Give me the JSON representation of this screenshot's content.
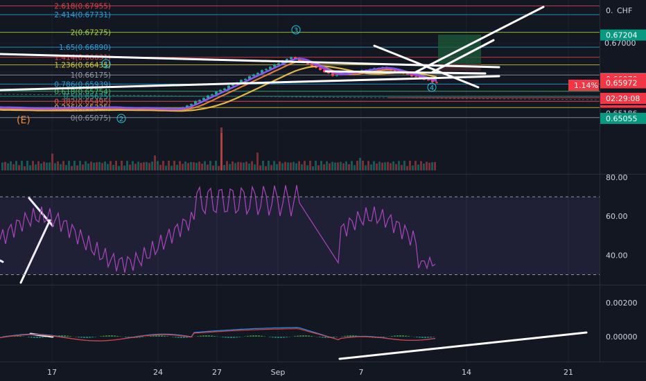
{
  "main": {
    "currency": "CHF",
    "top_label": "0.",
    "axis_ticks": [
      "0.67000"
    ],
    "fib_levels": [
      {
        "label": "2.618(0.67955)",
        "price": 0.67955,
        "color": "#e0414a"
      },
      {
        "label": "2.414(0.67731)",
        "price": 0.67731,
        "color": "#2a9fd6"
      },
      {
        "label": "2(0.67275)",
        "price": 0.67275,
        "color": "#a5d63f"
      },
      {
        "label": "1.65(0.66890)",
        "price": 0.6689,
        "color": "#2a9fd6"
      },
      {
        "label": "1.414(0.66631)",
        "price": 0.66631,
        "color": "#e0414a"
      },
      {
        "label": "1.236(0.66435)",
        "price": 0.66435,
        "color": "#d4c93a"
      },
      {
        "label": "1(0.66175)",
        "price": 0.66175,
        "color": "#9598a1"
      },
      {
        "label": "0.786(0.65939)",
        "price": 0.65939,
        "color": "#2a9fd6"
      },
      {
        "label": "0.618(0.65754)",
        "price": 0.65754,
        "color": "#3fbf6f"
      },
      {
        "label": "0.5(0.65625)",
        "price": 0.65625,
        "color": "#26a69a"
      },
      {
        "label": "0.382(0.65495)",
        "price": 0.65495,
        "color": "#ef5350"
      },
      {
        "label": "0.236(0.65335)",
        "price": 0.65335,
        "color": "#d4c93a"
      },
      {
        "label": "0(0.65075)",
        "price": 0.65075,
        "color": "#9598a1"
      }
    ],
    "price_tags": [
      {
        "text": "0.67204",
        "price": 0.67204,
        "bg": "#089981",
        "fg": "#ffffff"
      },
      {
        "text": "0.66077",
        "price": 0.66077,
        "bg": "#ffffff",
        "fg": "#131722"
      },
      {
        "text": "0.66070",
        "price": 0.6607,
        "bg": "#f23645",
        "fg": "#ffffff"
      },
      {
        "text": "0.65972",
        "price": 0.65972,
        "bg": "#f23645",
        "fg": "#ffffff"
      },
      {
        "text": "0.65252",
        "price": 0.65252,
        "bg": "#f23645",
        "fg": "#ffffff"
      },
      {
        "text": "0.65186",
        "price": 0.65186,
        "bg": "#131722",
        "fg": "#d1d4dc"
      },
      {
        "text": "0.65055",
        "price": 0.65055,
        "bg": "#089981",
        "fg": "#ffffff"
      }
    ],
    "percent_badge": "1.14%",
    "countdown": "02:29:08",
    "wave_labels": [
      "(E)",
      "1",
      "2",
      "3",
      "4"
    ]
  },
  "rsi": {
    "ticks": [
      "80.00",
      "60.00",
      "40.00"
    ],
    "upper": 70,
    "lower": 30
  },
  "macd": {
    "ticks": [
      "0.00200",
      "0.00000"
    ]
  },
  "time_axis": {
    "labels": [
      "17",
      "24",
      "27",
      "Sep",
      "7",
      "14",
      "21"
    ]
  }
}
